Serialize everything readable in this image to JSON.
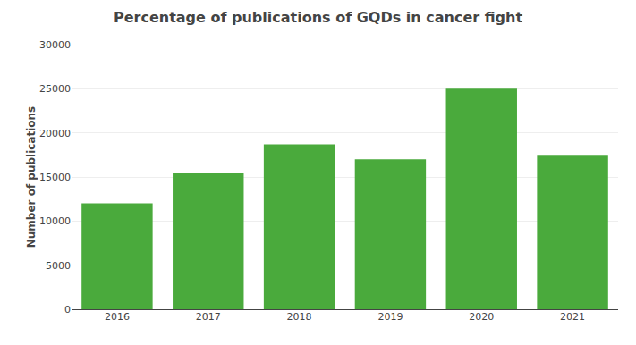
{
  "chart_data": {
    "type": "bar",
    "title": "Percentage of publications of GQDs in cancer fight",
    "ylabel": "Number of publications",
    "categories": [
      "2016",
      "2017",
      "2018",
      "2019",
      "2020",
      "2021"
    ],
    "values": [
      12000,
      15400,
      18700,
      17000,
      25000,
      17500
    ],
    "color": "#4aaa3c",
    "ylim": [
      0,
      30000
    ],
    "yticks": [
      0,
      5000,
      10000,
      15000,
      20000,
      25000,
      30000
    ],
    "grid": true
  }
}
